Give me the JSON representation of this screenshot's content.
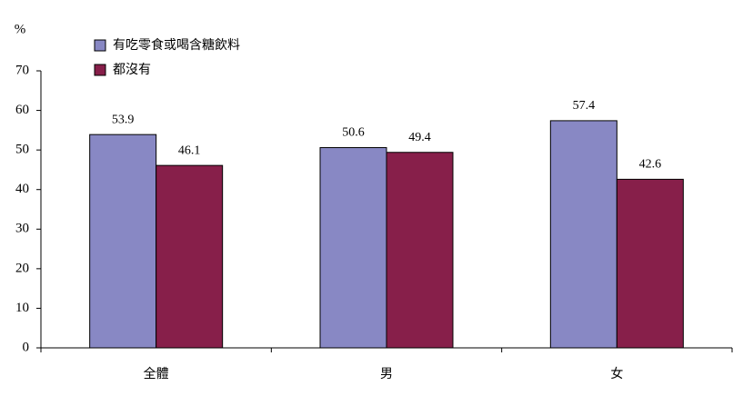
{
  "chart_data": {
    "type": "bar",
    "y_label": "%",
    "categories": [
      "全體",
      "男",
      "女"
    ],
    "series": [
      {
        "name": "有吃零食或喝含糖飲料",
        "color": "#8888c4",
        "values": [
          53.9,
          50.6,
          57.4
        ]
      },
      {
        "name": "都沒有",
        "color": "#871f4a",
        "values": [
          46.1,
          49.4,
          42.6
        ]
      }
    ],
    "ylim": [
      0,
      70
    ],
    "yticks": [
      0,
      10,
      20,
      30,
      40,
      50,
      60,
      70
    ],
    "grid": false,
    "legend": "top-left"
  }
}
